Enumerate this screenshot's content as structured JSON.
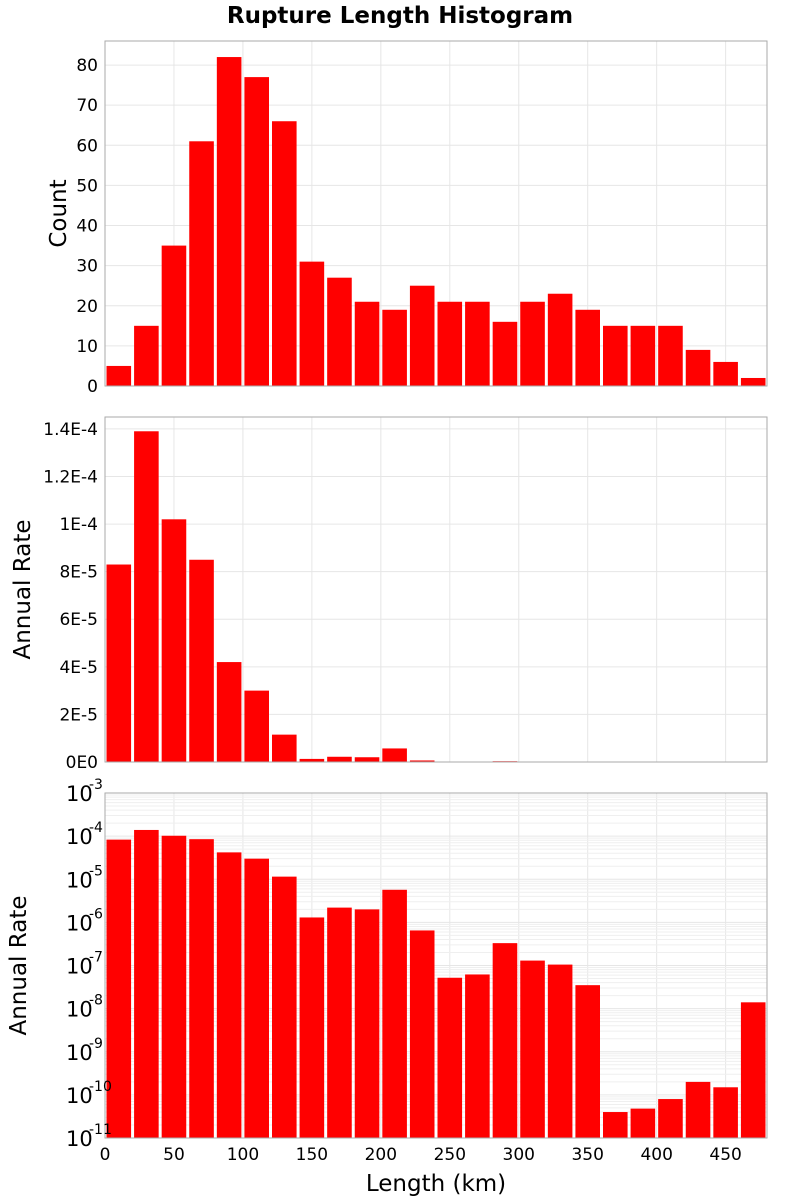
{
  "chart_data": {
    "title": "Rupture Length Histogram",
    "type": "bar",
    "bar_color": "#ff0000",
    "background_color": "#ffffff",
    "frame_color": "#aaaaaa",
    "grid_color": "#e6e6e6",
    "grid": true,
    "x": {
      "label": "Length (km)",
      "range": [
        0,
        480
      ],
      "ticks": [
        0,
        50,
        100,
        150,
        200,
        250,
        300,
        350,
        400,
        450
      ],
      "tick_labels": [
        "0",
        "50",
        "100",
        "150",
        "200",
        "250",
        "300",
        "350",
        "400",
        "450"
      ]
    },
    "bin_centers": [
      10,
      30,
      50,
      70,
      90,
      110,
      130,
      150,
      170,
      190,
      210,
      230,
      250,
      270,
      290,
      310,
      330,
      350,
      370,
      390,
      410,
      430,
      450,
      470
    ],
    "bin_width": 20,
    "panels": [
      {
        "ylabel": "Count",
        "scale": "linear",
        "ylim": [
          0,
          86
        ],
        "yticks": [
          0,
          10,
          20,
          30,
          40,
          50,
          60,
          70,
          80
        ],
        "ytick_labels": [
          "0",
          "10",
          "20",
          "30",
          "40",
          "50",
          "60",
          "70",
          "80"
        ],
        "values": [
          5,
          15,
          35,
          61,
          82,
          77,
          66,
          31,
          27,
          21,
          19,
          25,
          21,
          21,
          16,
          21,
          23,
          19,
          15,
          15,
          15,
          9,
          6,
          2
        ]
      },
      {
        "ylabel": "Annual Rate",
        "scale": "linear",
        "ylim": [
          0,
          0.000145
        ],
        "yticks": [
          0,
          2e-05,
          4e-05,
          6e-05,
          8e-05,
          0.0001,
          0.00012,
          0.00014
        ],
        "ytick_labels": [
          "0E0",
          "2E-5",
          "4E-5",
          "6E-5",
          "8E-5",
          "1E-4",
          "1.2E-4",
          "1.4E-4"
        ],
        "values": [
          8.3e-05,
          0.000139,
          0.000102,
          8.5e-05,
          4.2e-05,
          3e-05,
          1.15e-05,
          1.3e-06,
          2.2e-06,
          2e-06,
          5.7e-06,
          6.5e-07,
          5.2e-08,
          6.2e-08,
          3.3e-07,
          1.3e-07,
          1.05e-07,
          3.5e-08,
          4e-11,
          4.8e-11,
          8e-11,
          2e-10,
          1.5e-10,
          1.4e-08
        ]
      },
      {
        "ylabel": "Annual Rate",
        "scale": "log",
        "ylim": [
          1e-11,
          0.001
        ],
        "ytick_bases": [
          "10",
          "10",
          "10",
          "10",
          "10",
          "10",
          "10",
          "10",
          "10"
        ],
        "ytick_exponents": [
          "-3",
          "-4",
          "-5",
          "-6",
          "-7",
          "-8",
          "-9",
          "-10",
          "-11"
        ],
        "values": [
          8.3e-05,
          0.000139,
          0.000102,
          8.5e-05,
          4.2e-05,
          3e-05,
          1.15e-05,
          1.3e-06,
          2.2e-06,
          2e-06,
          5.7e-06,
          6.5e-07,
          5.2e-08,
          6.2e-08,
          3.3e-07,
          1.3e-07,
          1.05e-07,
          3.5e-08,
          4e-11,
          4.8e-11,
          8e-11,
          2e-10,
          1.5e-10,
          1.4e-08
        ]
      }
    ]
  }
}
